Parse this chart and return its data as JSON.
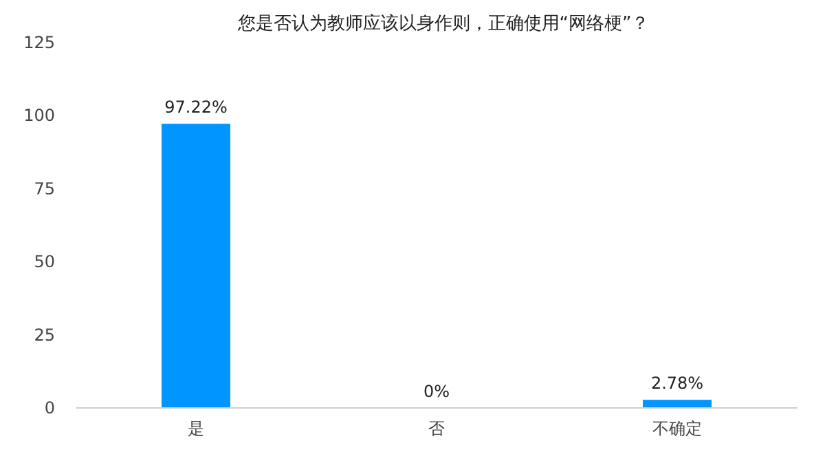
{
  "chart_data": {
    "type": "bar",
    "title": "您是否认为教师应该以身作则，正确使用“网络梗”？",
    "categories": [
      "是",
      "否",
      "不确定"
    ],
    "values": [
      97.22,
      0,
      2.78
    ],
    "value_labels": [
      "97.22%",
      "0%",
      "2.78%"
    ],
    "color": "#0095ff",
    "ylim": [
      0,
      125
    ],
    "yticks": [
      0,
      25,
      50,
      75,
      100,
      125
    ],
    "grid": false
  }
}
